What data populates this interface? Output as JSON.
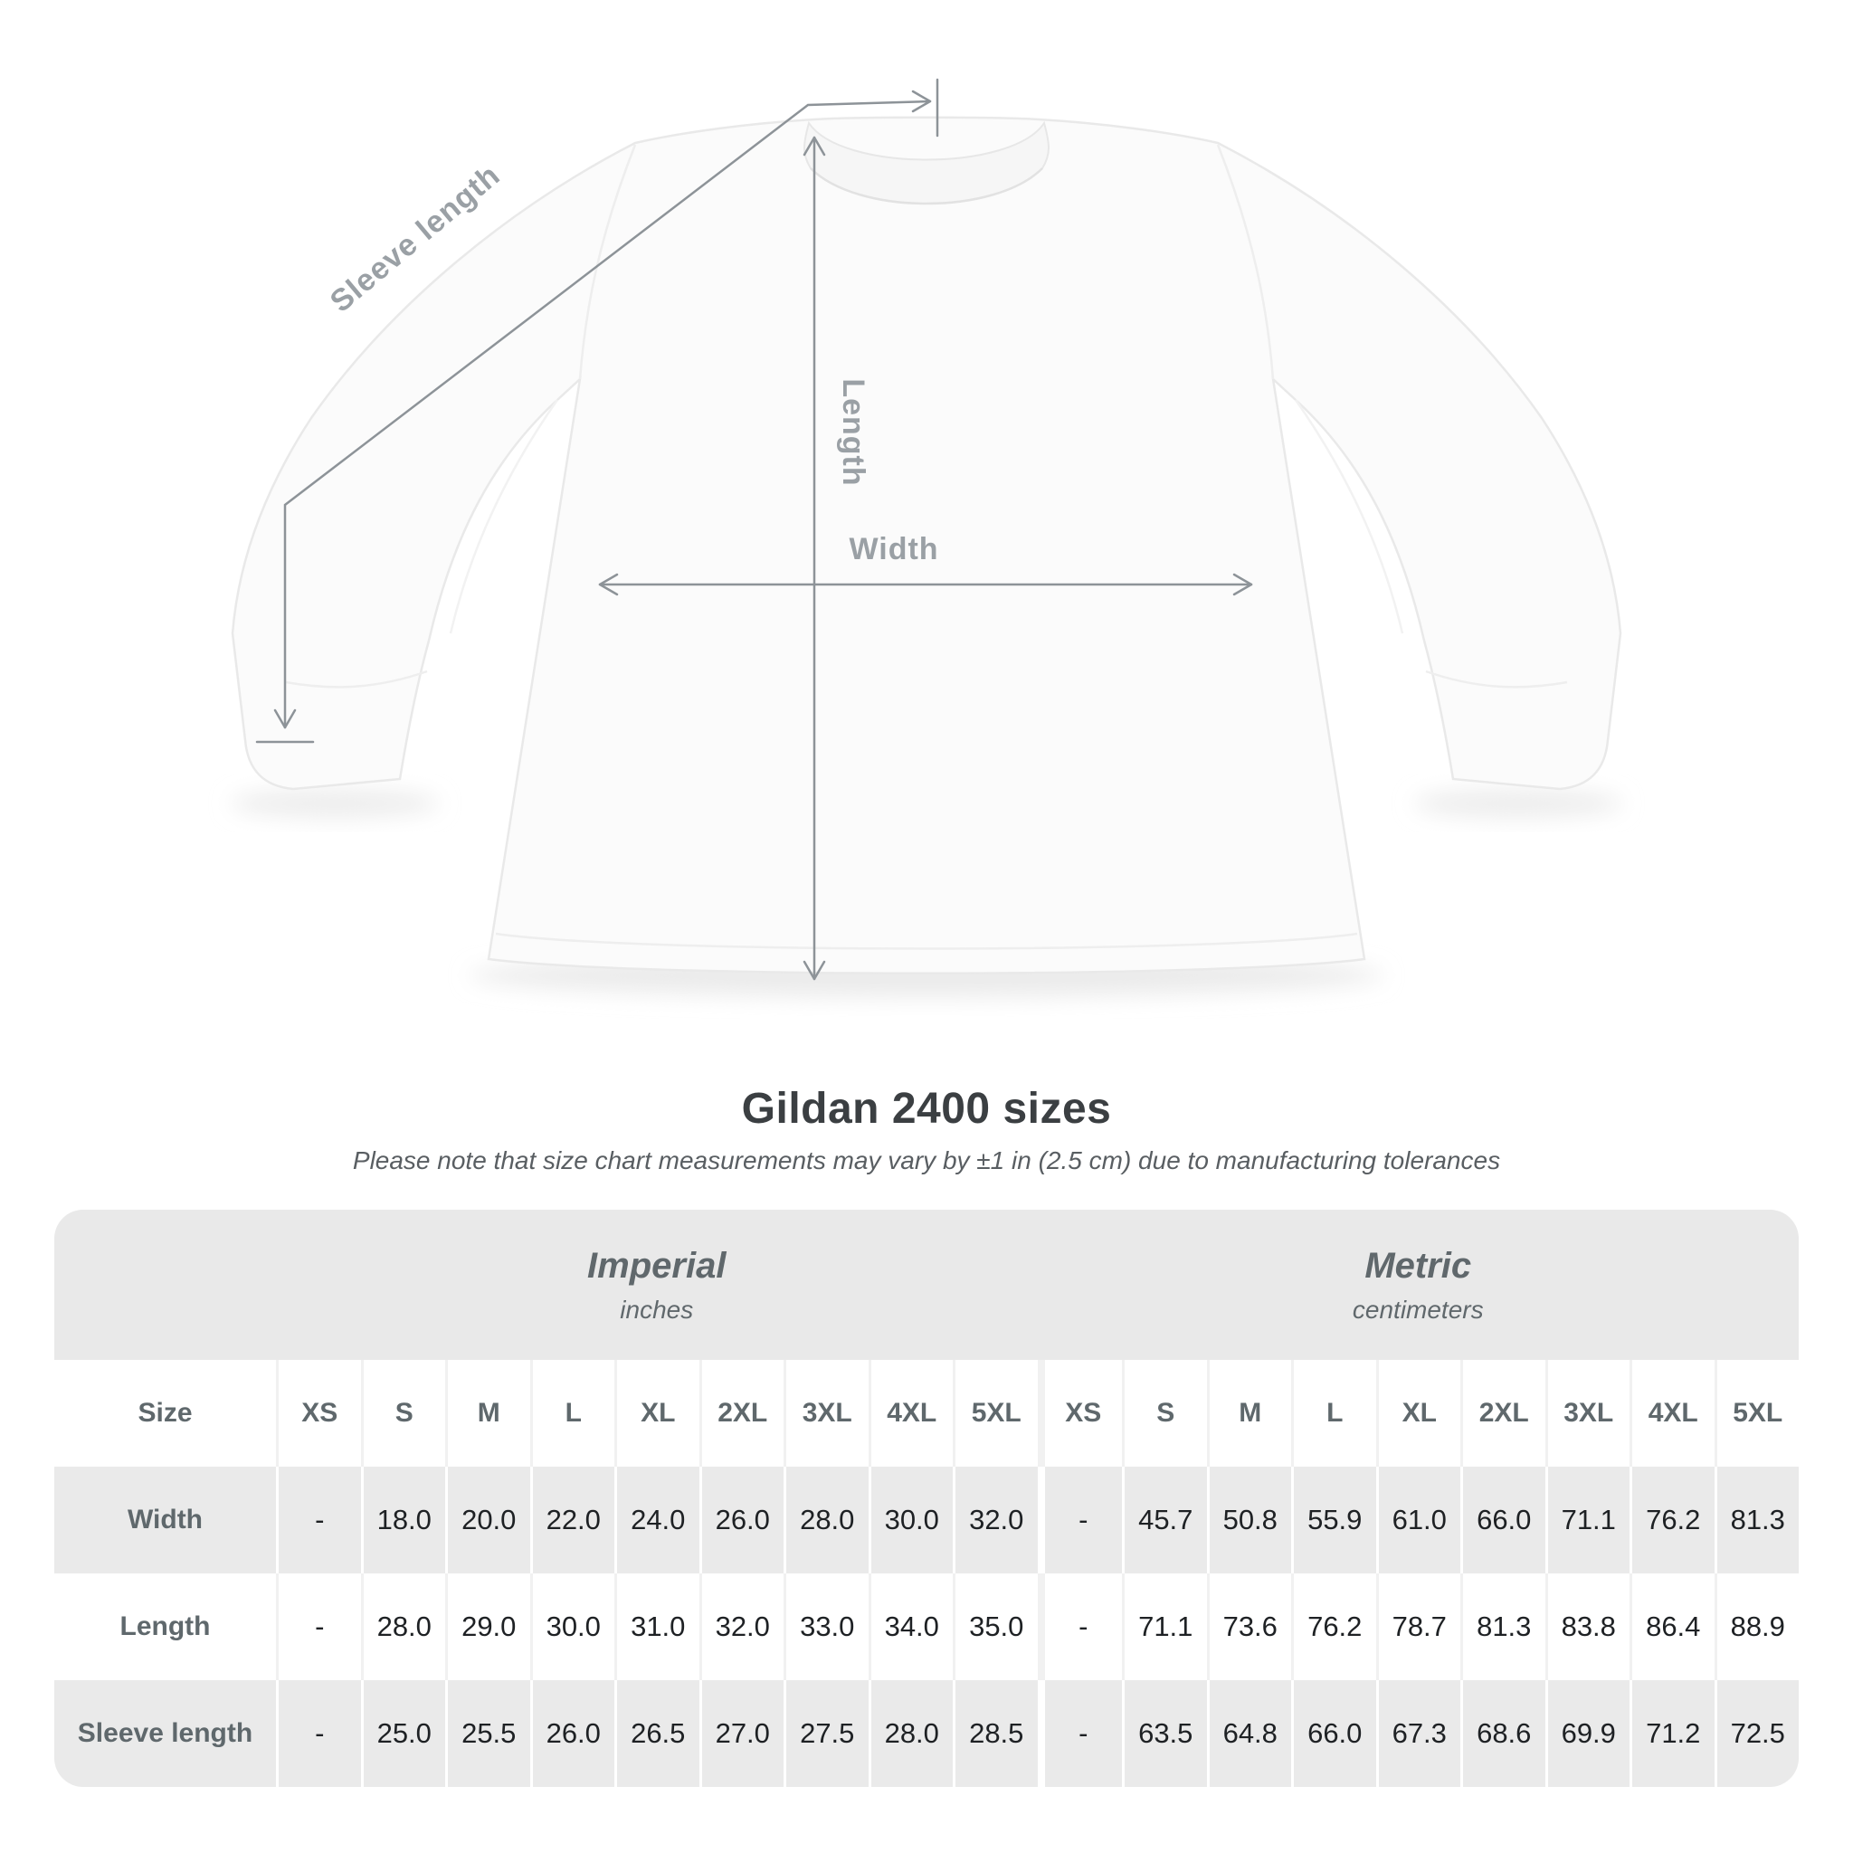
{
  "diagram": {
    "labels": {
      "sleeve_length": "Sleeve length",
      "length": "Length",
      "width": "Width"
    },
    "line_color": "#8d9398",
    "label_color": "#9aa0a5"
  },
  "title": "Gildan 2400 sizes",
  "subtitle": "Please note that size chart measurements may vary by ±1 in (2.5 cm) due to manufacturing tolerances",
  "table": {
    "size_header": "Size",
    "unit_groups": [
      {
        "label": "Imperial",
        "sublabel": "inches"
      },
      {
        "label": "Metric",
        "sublabel": "centimeters"
      }
    ],
    "sizes": [
      "XS",
      "S",
      "M",
      "L",
      "XL",
      "2XL",
      "3XL",
      "4XL",
      "5XL"
    ],
    "rows": [
      {
        "label": "Width",
        "imperial": [
          "-",
          "18.0",
          "20.0",
          "22.0",
          "24.0",
          "26.0",
          "28.0",
          "30.0",
          "32.0"
        ],
        "metric": [
          "-",
          "45.7",
          "50.8",
          "55.9",
          "61.0",
          "66.0",
          "71.1",
          "76.2",
          "81.3"
        ]
      },
      {
        "label": "Length",
        "imperial": [
          "-",
          "28.0",
          "29.0",
          "30.0",
          "31.0",
          "32.0",
          "33.0",
          "34.0",
          "35.0"
        ],
        "metric": [
          "-",
          "71.1",
          "73.6",
          "76.2",
          "78.7",
          "81.3",
          "83.8",
          "86.4",
          "88.9"
        ]
      },
      {
        "label": "Sleeve length",
        "imperial": [
          "-",
          "25.0",
          "25.5",
          "26.0",
          "26.5",
          "27.0",
          "27.5",
          "28.0",
          "28.5"
        ],
        "metric": [
          "-",
          "63.5",
          "64.8",
          "66.0",
          "67.3",
          "68.6",
          "69.9",
          "71.2",
          "72.5"
        ]
      }
    ]
  },
  "colors": {
    "table_band": "#e9e9e9",
    "table_row_gray": "#eaeaea",
    "header_text": "#5f686c",
    "value_text": "#1e2124",
    "title_text": "#3b3f42",
    "subtitle_text": "#595e62"
  }
}
